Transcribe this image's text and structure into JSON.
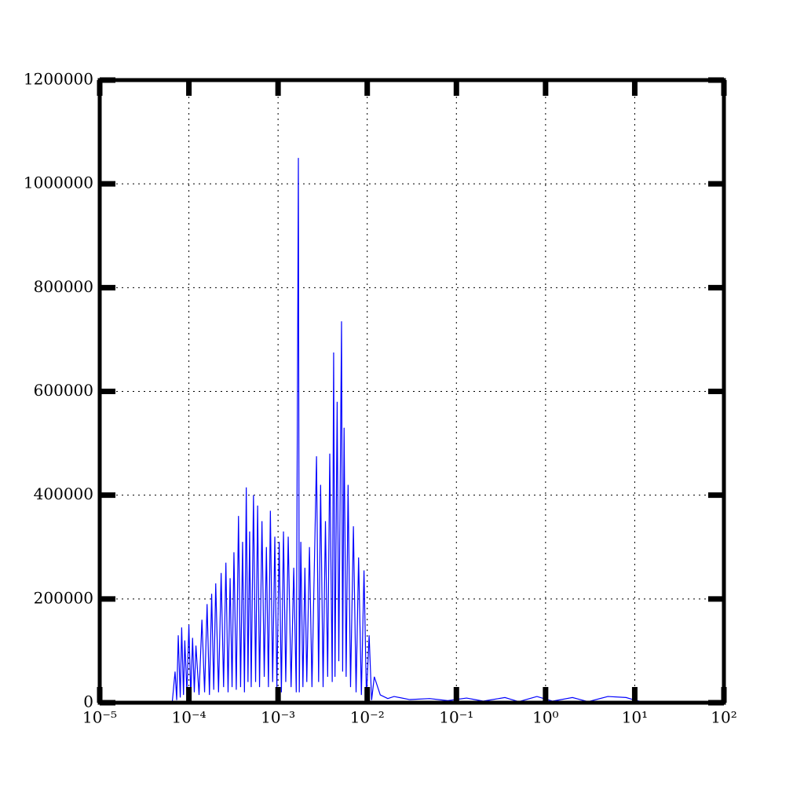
{
  "chart_data": {
    "type": "line",
    "xscale": "log",
    "grid": true,
    "color": "#0000ff",
    "xlim": [
      1e-05,
      100
    ],
    "xticks": [
      {
        "value": 1e-05,
        "label": "10⁻⁵"
      },
      {
        "value": 0.0001,
        "label": "10⁻⁴"
      },
      {
        "value": 0.001,
        "label": "10⁻³"
      },
      {
        "value": 0.01,
        "label": "10⁻²"
      },
      {
        "value": 0.1,
        "label": "10⁻¹"
      },
      {
        "value": 1,
        "label": "10⁰"
      },
      {
        "value": 10,
        "label": "10¹"
      },
      {
        "value": 100,
        "label": "10²"
      }
    ],
    "ylim": [
      0,
      1200000
    ],
    "yticks": [
      0,
      200000,
      400000,
      600000,
      800000,
      1000000,
      1200000
    ],
    "x": [
      6.5e-05,
      7e-05,
      7.3e-05,
      7.6e-05,
      8e-05,
      8.3e-05,
      8.7e-05,
      9e-05,
      9.5e-05,
      0.0001,
      0.000105,
      0.00011,
      0.000115,
      0.00012,
      0.00013,
      0.00014,
      0.00015,
      0.00016,
      0.00017,
      0.00018,
      0.00019,
      0.0002,
      0.000215,
      0.00023,
      0.000245,
      0.00026,
      0.000275,
      0.00029,
      0.000305,
      0.00032,
      0.00034,
      0.00036,
      0.00038,
      0.0004,
      0.00042,
      0.00044,
      0.00046,
      0.00048,
      0.0005,
      0.00053,
      0.00056,
      0.00059,
      0.00062,
      0.00066,
      0.0007,
      0.00074,
      0.00078,
      0.00082,
      0.00087,
      0.00092,
      0.00097,
      0.00103,
      0.00109,
      0.00115,
      0.00122,
      0.0013,
      0.0014,
      0.0015,
      0.0016,
      0.00169,
      0.00173,
      0.0018,
      0.0019,
      0.002,
      0.0021,
      0.00225,
      0.0024,
      0.0027,
      0.00285,
      0.003,
      0.0032,
      0.0034,
      0.0036,
      0.0038,
      0.00405,
      0.0042,
      0.00435,
      0.0046,
      0.0048,
      0.00515,
      0.0053,
      0.0055,
      0.0058,
      0.0061,
      0.0065,
      0.007,
      0.0075,
      0.008,
      0.0086,
      0.0092,
      0.0098,
      0.0105,
      0.0112,
      0.012,
      0.014,
      0.017,
      0.02,
      0.03,
      0.05,
      0.08,
      0.13,
      0.2,
      0.35,
      0.5,
      0.8,
      1.2,
      2,
      3,
      5,
      8,
      10,
      12
    ],
    "values": [
      0,
      60000,
      5000,
      130000,
      10000,
      145000,
      15000,
      120000,
      20000,
      150000,
      10000,
      125000,
      20000,
      110000,
      15000,
      160000,
      20000,
      190000,
      15000,
      210000,
      25000,
      230000,
      20000,
      250000,
      30000,
      270000,
      20000,
      240000,
      30000,
      290000,
      25000,
      360000,
      30000,
      310000,
      20000,
      415000,
      40000,
      330000,
      30000,
      400000,
      40000,
      380000,
      30000,
      350000,
      50000,
      300000,
      30000,
      370000,
      40000,
      320000,
      30000,
      310000,
      20000,
      330000,
      40000,
      320000,
      30000,
      260000,
      20000,
      1050000,
      20000,
      310000,
      30000,
      260000,
      40000,
      300000,
      30000,
      475000,
      40000,
      420000,
      30000,
      350000,
      50000,
      480000,
      40000,
      675000,
      50000,
      580000,
      80000,
      735000,
      60000,
      530000,
      50000,
      420000,
      30000,
      340000,
      20000,
      280000,
      15000,
      255000,
      10000,
      130000,
      5000,
      50000,
      15000,
      8000,
      12000,
      6000,
      8000,
      4000,
      9000,
      3000,
      10000,
      2000,
      12000,
      3000,
      10000,
      2000,
      12000,
      10000,
      5000,
      2000
    ]
  }
}
